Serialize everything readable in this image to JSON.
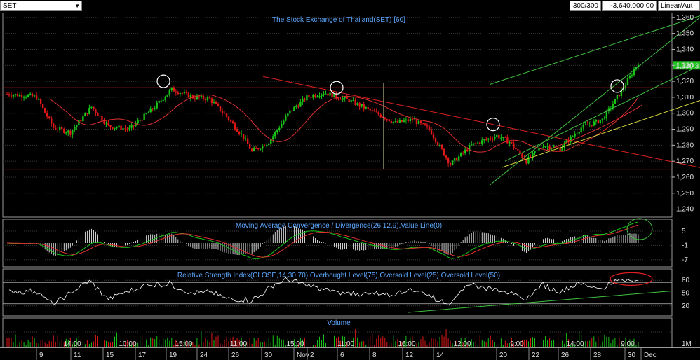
{
  "toolbar": {
    "symbol": "SET",
    "bar_count": "300/300",
    "value": "-3,640,000.00",
    "scale": "Linear/Aut"
  },
  "colors": {
    "background": "#000000",
    "up": "#18c418",
    "down": "#e01818",
    "grid": "#3a3a3a",
    "title": "#5da8ff",
    "ma": "#e03030",
    "trend_green": "#40c040",
    "trend_red": "#e02020",
    "trend_yellow": "#d8d840",
    "rsi": "#ffffff",
    "last_price_bg": "#20c020"
  },
  "chart_data": [
    {
      "type": "candlestick",
      "title": "The Stock Exchange of Thailand(SET) [60]",
      "y_ticks": [
        "1,360",
        "1,350",
        "1,340",
        "1,330",
        "1,320",
        "1,310",
        "1,300",
        "1,290",
        "1,280",
        "1,270",
        "1,260",
        "1,250",
        "1,240"
      ],
      "y_range": [
        1235,
        1363
      ],
      "last_price": "1,330.3",
      "moving_average": true,
      "annotations": [
        "circle",
        "circle",
        "circle",
        "circle"
      ]
    },
    {
      "type": "line+histogram",
      "title": "Moving Average Convergence / Divergence(26,12,9),Value Line(0)",
      "y_ticks": [
        "5",
        "-1",
        "-7"
      ]
    },
    {
      "type": "line",
      "title": "Relative Strength Index(CLOSE,14,30,70),Overbought Level(75),Oversold Level(25),Oversold Level(50)",
      "y_ticks": [
        "80",
        "50",
        "20"
      ]
    },
    {
      "type": "bar",
      "title": "Volume",
      "y_ticks": [
        "1M"
      ]
    }
  ],
  "x_axis": {
    "intraday": [
      "14:00",
      "10:00",
      "15:00",
      "11:00",
      "15:00",
      "11:00",
      "16:00",
      "12:00",
      "9:00",
      "14:00",
      "9:00"
    ],
    "dates": [
      "9",
      "11",
      "15",
      "17",
      "19",
      "24",
      "26",
      "30",
      "Nov",
      "2",
      "6",
      "8",
      "12",
      "14",
      "20",
      "22",
      "26",
      "28",
      "30",
      "Dec"
    ]
  }
}
